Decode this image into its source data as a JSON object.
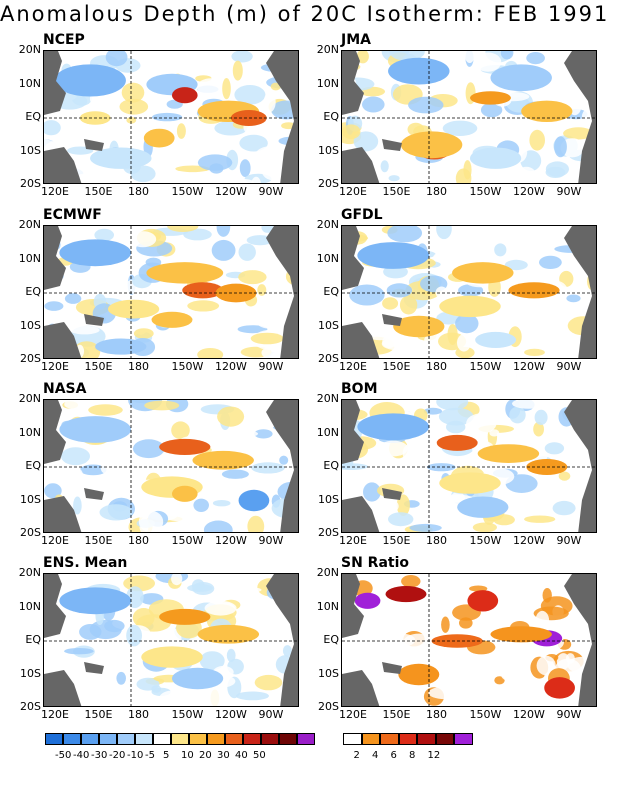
{
  "title": "Anomalous Depth (m) of 20C Isotherm: FEB 1991",
  "lat_labels": [
    "20N",
    "10N",
    "EQ",
    "10S",
    "20S"
  ],
  "lon_labels": [
    "120E",
    "150E",
    "180",
    "150W",
    "120W",
    "90W"
  ],
  "panels": [
    {
      "name": "NCEP"
    },
    {
      "name": "JMA"
    },
    {
      "name": "ECMWF"
    },
    {
      "name": "GFDL"
    },
    {
      "name": "NASA"
    },
    {
      "name": "BOM"
    },
    {
      "name": "ENS. Mean"
    },
    {
      "name": "SN Ratio"
    }
  ],
  "colorbars": {
    "anomaly": {
      "labels": [
        "-50",
        "-40",
        "-30",
        "-20",
        "-10",
        "-5",
        "5",
        "10",
        "20",
        "30",
        "40",
        "50"
      ],
      "colors": [
        "#1e6fd8",
        "#3c8ae8",
        "#5aa0f0",
        "#7cb6f6",
        "#a0ccfa",
        "#c8e6fc",
        "#ffffff",
        "#fde68a",
        "#fbc146",
        "#f59a1e",
        "#e8601c",
        "#c82418",
        "#9a0e0e",
        "#6e0606",
        "#9a1ec8"
      ]
    },
    "sn_ratio": {
      "labels": [
        "2",
        "4",
        "6",
        "8",
        "12"
      ],
      "colors": [
        "#ffffff",
        "#f5941e",
        "#ee6a1a",
        "#dc2c18",
        "#b01010",
        "#780808",
        "#a020d8"
      ]
    }
  }
}
